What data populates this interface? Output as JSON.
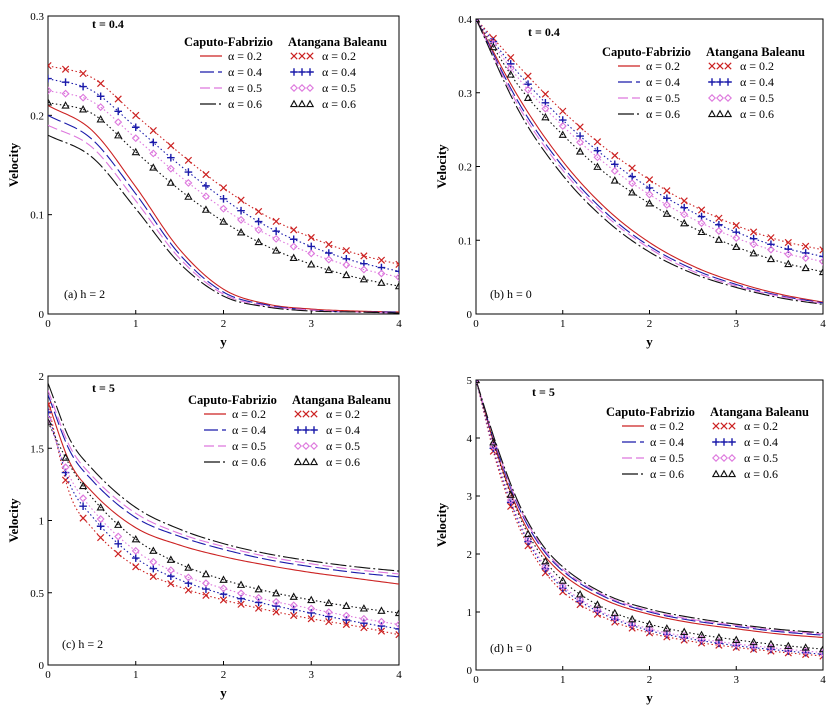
{
  "figure": {
    "x_axis_label": "y",
    "y_axis_label": "Velocity",
    "legend": {
      "cf_title": "Caputo-Fabrizio",
      "ab_title": "Atangana Baleanu",
      "alphas": [
        "α = 0.2",
        "α = 0.4",
        "α = 0.5",
        "α = 0.6"
      ]
    },
    "series_colors": {
      "a0.2": "#cc2222",
      "a0.4": "#1a1aaa",
      "a0.5": "#dd77dd",
      "a0.6": "#111111"
    },
    "series_styles": {
      "caputo_fabrizio": "solid/dashed line",
      "atangana_baleanu": "dotted line with markers: × (0.2), + (0.4), ◇ (0.5), △ (0.6)"
    }
  },
  "chart_data": [
    {
      "type": "line",
      "panel": "a",
      "annotation": "(a)    h  =  2",
      "time_label": "t = 0.4",
      "xlabel": "y",
      "ylabel": "Velocity",
      "xlim": [
        0,
        4
      ],
      "ylim": [
        0,
        0.3
      ],
      "xticks": [
        "0",
        "1",
        "2",
        "3",
        "4"
      ],
      "yticks": [
        "0",
        "0.1",
        "0.2",
        "0.3"
      ],
      "x": [
        0,
        0.5,
        1,
        1.5,
        2,
        2.5,
        3,
        3.5,
        4
      ],
      "series": [
        {
          "name": "Caputo-Fabrizio α = 0.2",
          "values": [
            0.21,
            0.185,
            0.128,
            0.065,
            0.025,
            0.01,
            0.005,
            0.003,
            0.002
          ]
        },
        {
          "name": "Caputo-Fabrizio α = 0.4",
          "values": [
            0.2,
            0.176,
            0.121,
            0.06,
            0.022,
            0.009,
            0.004,
            0.002,
            0.002
          ]
        },
        {
          "name": "Caputo-Fabrizio α = 0.5",
          "values": [
            0.19,
            0.168,
            0.114,
            0.056,
            0.02,
            0.008,
            0.004,
            0.002,
            0.001
          ]
        },
        {
          "name": "Caputo-Fabrizio α = 0.6",
          "values": [
            0.18,
            0.158,
            0.106,
            0.051,
            0.018,
            0.007,
            0.003,
            0.002,
            0.001
          ]
        },
        {
          "name": "Atangana Baleanu α = 0.2",
          "values": [
            0.25,
            0.238,
            0.2,
            0.162,
            0.127,
            0.098,
            0.077,
            0.061,
            0.05
          ]
        },
        {
          "name": "Atangana Baleanu α = 0.4",
          "values": [
            0.237,
            0.225,
            0.188,
            0.15,
            0.116,
            0.088,
            0.068,
            0.053,
            0.043
          ]
        },
        {
          "name": "Atangana Baleanu α = 0.5",
          "values": [
            0.225,
            0.214,
            0.177,
            0.139,
            0.106,
            0.08,
            0.061,
            0.047,
            0.037
          ]
        },
        {
          "name": "Atangana Baleanu α = 0.6",
          "values": [
            0.213,
            0.202,
            0.163,
            0.125,
            0.093,
            0.068,
            0.05,
            0.037,
            0.028
          ]
        }
      ]
    },
    {
      "type": "line",
      "panel": "b",
      "annotation": "(b)    h  =  0",
      "time_label": "t = 0.4",
      "xlabel": "y",
      "ylabel": "Velocity",
      "xlim": [
        0,
        4
      ],
      "ylim": [
        0,
        0.4
      ],
      "xticks": [
        "0",
        "1",
        "2",
        "3",
        "4"
      ],
      "yticks": [
        "0",
        "0.1",
        "0.2",
        "0.3",
        "0.4"
      ],
      "x": [
        0,
        0.5,
        1,
        1.5,
        2,
        2.5,
        3,
        3.5,
        4
      ],
      "series": [
        {
          "name": "Caputo-Fabrizio α = 0.2",
          "values": [
            0.4,
            0.292,
            0.207,
            0.143,
            0.097,
            0.065,
            0.043,
            0.027,
            0.016
          ]
        },
        {
          "name": "Caputo-Fabrizio α = 0.4",
          "values": [
            0.4,
            0.285,
            0.2,
            0.137,
            0.092,
            0.061,
            0.04,
            0.025,
            0.015
          ]
        },
        {
          "name": "Caputo-Fabrizio α = 0.5",
          "values": [
            0.4,
            0.28,
            0.195,
            0.133,
            0.089,
            0.058,
            0.038,
            0.024,
            0.014
          ]
        },
        {
          "name": "Caputo-Fabrizio α = 0.6",
          "values": [
            0.4,
            0.274,
            0.188,
            0.127,
            0.084,
            0.055,
            0.036,
            0.022,
            0.013
          ]
        },
        {
          "name": "Atangana Baleanu α = 0.2",
          "values": [
            0.4,
            0.335,
            0.275,
            0.224,
            0.182,
            0.147,
            0.12,
            0.1,
            0.087
          ]
        },
        {
          "name": "Atangana Baleanu α = 0.4",
          "values": [
            0.4,
            0.325,
            0.263,
            0.212,
            0.171,
            0.138,
            0.111,
            0.091,
            0.078
          ]
        },
        {
          "name": "Atangana Baleanu α = 0.5",
          "values": [
            0.4,
            0.318,
            0.255,
            0.203,
            0.162,
            0.129,
            0.103,
            0.084,
            0.071
          ]
        },
        {
          "name": "Atangana Baleanu α = 0.6",
          "values": [
            0.4,
            0.308,
            0.243,
            0.19,
            0.15,
            0.117,
            0.091,
            0.071,
            0.057
          ]
        }
      ]
    },
    {
      "type": "line",
      "panel": "c",
      "annotation": "(c)    h  =  2",
      "time_label": "t = 5",
      "xlabel": "y",
      "ylabel": "Velocity",
      "xlim": [
        0,
        4
      ],
      "ylim": [
        0,
        2
      ],
      "xticks": [
        "0",
        "1",
        "2",
        "3",
        "4"
      ],
      "yticks": [
        "0",
        "0.5",
        "1",
        "1.5",
        "2"
      ],
      "x": [
        0,
        0.25,
        0.5,
        1,
        1.5,
        2,
        2.5,
        3,
        3.5,
        4
      ],
      "series": [
        {
          "name": "Caputo-Fabrizio α = 0.2",
          "values": [
            1.82,
            1.4,
            1.2,
            0.95,
            0.83,
            0.75,
            0.69,
            0.64,
            0.6,
            0.56
          ]
        },
        {
          "name": "Caputo-Fabrizio α = 0.4",
          "values": [
            1.87,
            1.48,
            1.28,
            1.02,
            0.89,
            0.8,
            0.73,
            0.68,
            0.64,
            0.61
          ]
        },
        {
          "name": "Caputo-Fabrizio α = 0.5",
          "values": [
            1.9,
            1.51,
            1.31,
            1.05,
            0.91,
            0.82,
            0.75,
            0.7,
            0.66,
            0.63
          ]
        },
        {
          "name": "Caputo-Fabrizio α = 0.6",
          "values": [
            1.95,
            1.56,
            1.36,
            1.09,
            0.94,
            0.84,
            0.77,
            0.72,
            0.68,
            0.65
          ]
        },
        {
          "name": "Atangana Baleanu α = 0.2",
          "values": [
            1.8,
            1.18,
            0.95,
            0.68,
            0.54,
            0.45,
            0.38,
            0.32,
            0.27,
            0.21
          ]
        },
        {
          "name": "Atangana Baleanu α = 0.4",
          "values": [
            1.75,
            1.25,
            1.03,
            0.74,
            0.59,
            0.49,
            0.42,
            0.36,
            0.3,
            0.25
          ]
        },
        {
          "name": "Atangana Baleanu α = 0.5",
          "values": [
            1.7,
            1.3,
            1.08,
            0.79,
            0.63,
            0.53,
            0.45,
            0.39,
            0.33,
            0.28
          ]
        },
        {
          "name": "Atangana Baleanu α = 0.6",
          "values": [
            1.68,
            1.38,
            1.16,
            0.87,
            0.7,
            0.59,
            0.51,
            0.45,
            0.4,
            0.36
          ]
        }
      ]
    },
    {
      "type": "line",
      "panel": "d",
      "annotation": "(d)    h  =  0",
      "time_label": "t = 5",
      "xlabel": "y",
      "ylabel": "Velocity",
      "xlim": [
        0,
        4
      ],
      "ylim": [
        0,
        5
      ],
      "xticks": [
        "0",
        "1",
        "2",
        "3",
        "4"
      ],
      "yticks": [
        "0",
        "1",
        "2",
        "3",
        "4",
        "5"
      ],
      "x": [
        0,
        0.25,
        0.5,
        0.75,
        1,
        1.5,
        2,
        2.5,
        3,
        3.5,
        4
      ],
      "series": [
        {
          "name": "Caputo-Fabrizio α = 0.2",
          "values": [
            5.0,
            3.7,
            2.7,
            2.05,
            1.65,
            1.2,
            0.96,
            0.81,
            0.71,
            0.62,
            0.56
          ]
        },
        {
          "name": "Caputo-Fabrizio α = 0.4",
          "values": [
            5.0,
            3.76,
            2.78,
            2.12,
            1.71,
            1.25,
            1.0,
            0.85,
            0.75,
            0.66,
            0.6
          ]
        },
        {
          "name": "Caputo-Fabrizio α = 0.5",
          "values": [
            5.0,
            3.79,
            2.81,
            2.15,
            1.74,
            1.27,
            1.02,
            0.87,
            0.77,
            0.68,
            0.62
          ]
        },
        {
          "name": "Caputo-Fabrizio α = 0.6",
          "values": [
            5.0,
            3.82,
            2.85,
            2.19,
            1.78,
            1.3,
            1.05,
            0.9,
            0.79,
            0.7,
            0.64
          ]
        },
        {
          "name": "Atangana Baleanu α = 0.2",
          "values": [
            5.0,
            3.5,
            2.45,
            1.78,
            1.35,
            0.89,
            0.64,
            0.49,
            0.39,
            0.31,
            0.24
          ]
        },
        {
          "name": "Atangana Baleanu α = 0.4",
          "values": [
            5.0,
            3.56,
            2.52,
            1.85,
            1.41,
            0.94,
            0.68,
            0.53,
            0.42,
            0.34,
            0.27
          ]
        },
        {
          "name": "Atangana Baleanu α = 0.5",
          "values": [
            5.0,
            3.6,
            2.56,
            1.89,
            1.45,
            0.97,
            0.71,
            0.56,
            0.45,
            0.37,
            0.3
          ]
        },
        {
          "name": "Atangana Baleanu α = 0.6",
          "values": [
            5.0,
            3.68,
            2.65,
            1.98,
            1.54,
            1.05,
            0.79,
            0.63,
            0.52,
            0.43,
            0.36
          ]
        }
      ]
    }
  ]
}
